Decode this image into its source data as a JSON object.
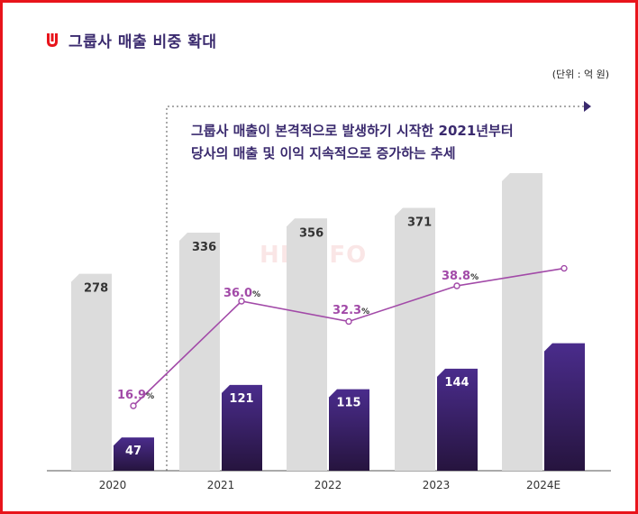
{
  "page": {
    "title": "그룹사 매출 비중 확대",
    "unit": "(단위 : 억 원)",
    "annotation": [
      "그룹사 매출이 본격적으로 발생하기 시작한 2021년부터",
      "당사의 매출 및 이익 지속적으로 증가하는 추세"
    ],
    "watermark": "HKINFO"
  },
  "colors": {
    "title": "#3a2a6e",
    "total_bar": "#dcdcdc",
    "group_bar_top": "#4a2c8c",
    "group_bar_bottom": "#26143e",
    "line": "#a24aa8",
    "line_label": "#a24aa8",
    "logo": "#e8141b",
    "frame": "#e8141b"
  },
  "chart_data": {
    "type": "bar",
    "categories": [
      "2020",
      "2021",
      "2022",
      "2023",
      "2024E"
    ],
    "series": [
      {
        "values": [
          278,
          336,
          356,
          371,
          null
        ]
      },
      {
        "values": [
          47,
          121,
          115,
          144,
          null
        ]
      }
    ],
    "line_series": {
      "values": [
        16.9,
        36.0,
        32.3,
        38.8,
        null
      ],
      "labels": [
        "16.9",
        "36.0",
        "32.3",
        "38.8",
        ""
      ],
      "suffix": "%"
    },
    "estimated_2024": {
      "total_bar": 420,
      "group_bar": 180,
      "line": 42
    },
    "ylim": [
      0,
      440
    ],
    "line_ylim": [
      -10,
      50
    ],
    "grid": false,
    "legend": "none"
  }
}
